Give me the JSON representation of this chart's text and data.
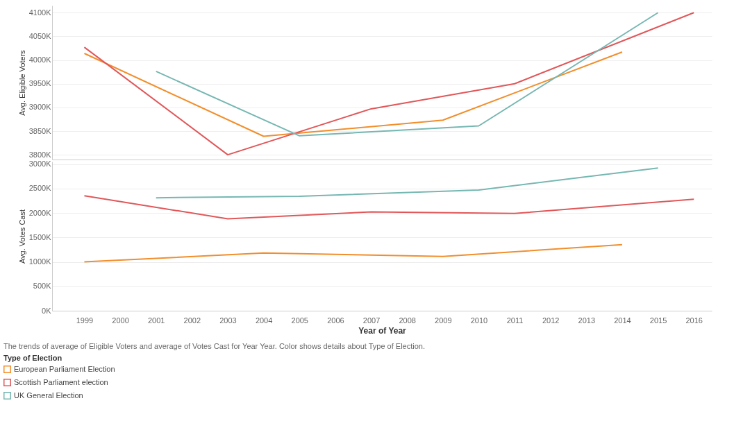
{
  "chart_data": [
    {
      "type": "line",
      "ylabel": "Avg. Eligible Voters",
      "xlim": [
        1998.1,
        2016.5
      ],
      "ylim": [
        3790000,
        4115000
      ],
      "yticks": [
        {
          "value": 3800000,
          "label": "3800K"
        },
        {
          "value": 3850000,
          "label": "3850K"
        },
        {
          "value": 3900000,
          "label": "3900K"
        },
        {
          "value": 3950000,
          "label": "3950K"
        },
        {
          "value": 4000000,
          "label": "4000K"
        },
        {
          "value": 4050000,
          "label": "4050K"
        },
        {
          "value": 4100000,
          "label": "4100K"
        }
      ],
      "xticks": [
        1999,
        2000,
        2001,
        2002,
        2003,
        2004,
        2005,
        2006,
        2007,
        2008,
        2009,
        2010,
        2011,
        2012,
        2013,
        2014,
        2015,
        2016
      ],
      "tick_labels": "y",
      "grid": "y",
      "legend": "bottom left",
      "legend_title": "Type of Election",
      "marker": "none",
      "line_style": "solid",
      "series": [
        {
          "name": "European Parliament Election",
          "color": "#f28e2b",
          "x": [
            1999,
            2004,
            2009,
            2014
          ],
          "values": [
            4014000,
            3839000,
            3873000,
            4017000
          ]
        },
        {
          "name": "Scottish Parliament election",
          "color": "#e15759",
          "x": [
            1999,
            2003,
            2007,
            2011,
            2016
          ],
          "values": [
            4027000,
            3800000,
            3897000,
            3950000,
            4100000
          ]
        },
        {
          "name": "UK General Election",
          "color": "#76b7b2",
          "x": [
            2001,
            2005,
            2010,
            2015
          ],
          "values": [
            3976000,
            3840000,
            3861000,
            4100000
          ]
        }
      ]
    },
    {
      "type": "line",
      "ylabel": "Avg. Votes Cast",
      "xlabel": "Year of Year",
      "xlim": [
        1998.1,
        2016.5
      ],
      "ylim": [
        0,
        3050000
      ],
      "yticks": [
        {
          "value": 0,
          "label": "0K"
        },
        {
          "value": 500000,
          "label": "500K"
        },
        {
          "value": 1000000,
          "label": "1000K"
        },
        {
          "value": 1500000,
          "label": "1500K"
        },
        {
          "value": 2000000,
          "label": "2000K"
        },
        {
          "value": 2500000,
          "label": "2500K"
        },
        {
          "value": 3000000,
          "label": "3000K"
        }
      ],
      "xticks": [
        1999,
        2000,
        2001,
        2002,
        2003,
        2004,
        2005,
        2006,
        2007,
        2008,
        2009,
        2010,
        2011,
        2012,
        2013,
        2014,
        2015,
        2016
      ],
      "grid": "y",
      "marker": "none",
      "line_style": "solid",
      "annotations": [
        "The trends of average of Eligible Voters and average of Votes Cast for Year Year.  Color shows details about Type of Election."
      ],
      "series": [
        {
          "name": "European Parliament Election",
          "color": "#f28e2b",
          "x": [
            1999,
            2004,
            2009,
            2014
          ],
          "values": [
            1000000,
            1180000,
            1110000,
            1350000
          ]
        },
        {
          "name": "Scottish Parliament election",
          "color": "#e15759",
          "x": [
            1999,
            2003,
            2007,
            2011,
            2016
          ],
          "values": [
            2350000,
            1880000,
            2020000,
            1990000,
            2280000
          ]
        },
        {
          "name": "UK General Election",
          "color": "#76b7b2",
          "x": [
            2001,
            2005,
            2010,
            2015
          ],
          "values": [
            2310000,
            2340000,
            2470000,
            2920000
          ]
        }
      ]
    }
  ]
}
